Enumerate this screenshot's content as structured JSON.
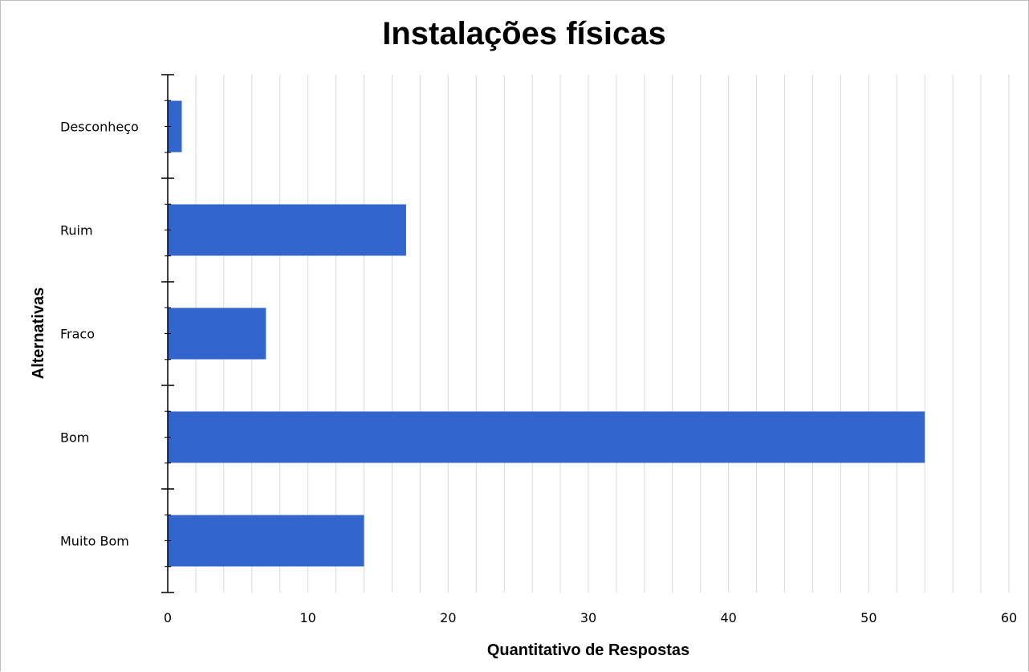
{
  "chart_data": {
    "type": "bar",
    "orientation": "horizontal",
    "title": "Instalações físicas",
    "xlabel": "Quantitativo de Respostas",
    "ylabel": "Alternativas",
    "categories": [
      "Desconheço",
      "Ruim",
      "Fraco",
      "Bom",
      "Muito Bom"
    ],
    "values": [
      1,
      17,
      7,
      54,
      14
    ],
    "xlim": [
      0,
      60
    ],
    "x_ticks": [
      0,
      10,
      20,
      30,
      40,
      50,
      60
    ],
    "minor_gridlines_every": 2,
    "grid": "vertical",
    "legend": "none",
    "bar_color": "#3366cc",
    "grid_color": "#d9d9d9"
  }
}
